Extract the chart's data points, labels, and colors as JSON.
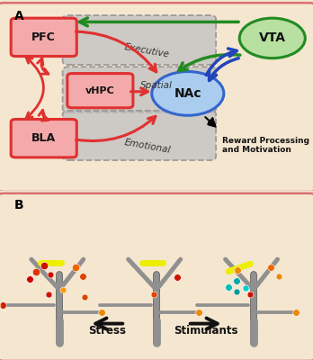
{
  "bg_color": "#f5e6d0",
  "border_color": "#d87070",
  "panel_a_label": "A",
  "panel_b_label": "B",
  "pfc_label": "PFC",
  "vhpc_label": "vHPC",
  "bla_label": "BLA",
  "nac_label": "NAc",
  "vta_label": "VTA",
  "executive_label": "Executive",
  "spatial_label": "Spatial",
  "emotional_label": "Emotional",
  "reward_label": "Reward Processing\nand Motivation",
  "stress_label": "Stress",
  "stimulants_label": "Stimulants",
  "red_color": "#e03030",
  "pink_box_face": "#f4aaaa",
  "green_color": "#228B22",
  "green_circle_face": "#b8e0a0",
  "green_circle_edge": "#228B22",
  "blue_color": "#2244bb",
  "blue_circle_face": "#aaccee",
  "blue_circle_edge": "#3366cc",
  "gray_box_face": "#c0c0c0",
  "gray_box_edge": "#888888",
  "tree_color": "#909090",
  "tree_edge": "#555555"
}
